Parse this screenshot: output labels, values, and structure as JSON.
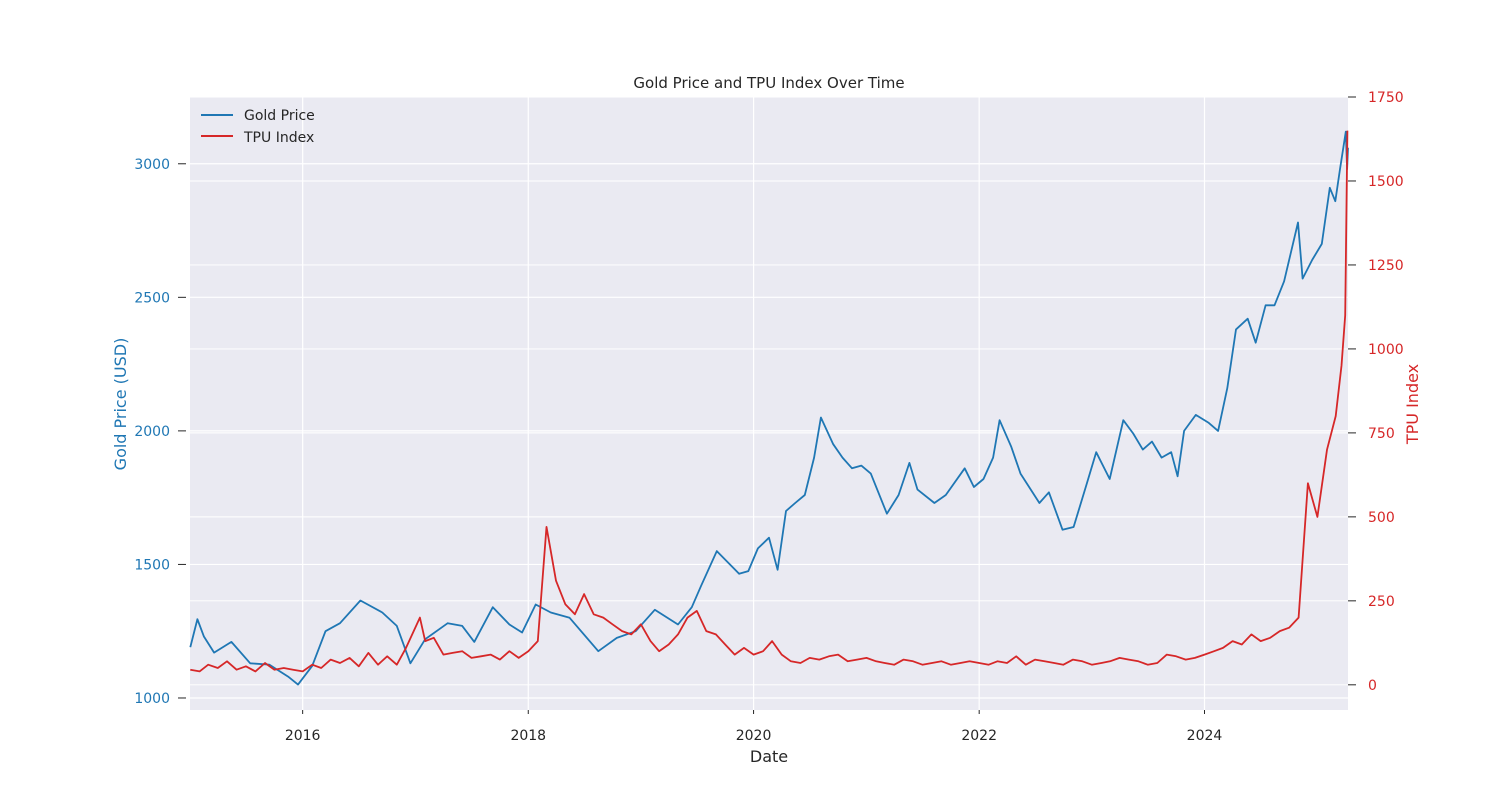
{
  "chart_data": {
    "type": "line",
    "title": "Gold Price and TPU Index Over Time",
    "xlabel": "Date",
    "ylabel_left": "Gold Price (USD)",
    "ylabel_right": "TPU Index",
    "x_range": [
      "2015-01-01",
      "2025-04-10"
    ],
    "x_ticks": [
      "2016",
      "2018",
      "2020",
      "2022",
      "2024"
    ],
    "ylim_left": [
      955,
      3250
    ],
    "yticks_left": [
      1000,
      1500,
      2000,
      2500,
      3000
    ],
    "ylim_right": [
      -75,
      1750
    ],
    "yticks_right": [
      0,
      250,
      500,
      750,
      1000,
      1250,
      1500,
      1750
    ],
    "grid": true,
    "legend_position": "top-left",
    "colors": {
      "gold": "#1f77b4",
      "tpu": "#d62728",
      "plot_bg": "#eaeaf2",
      "grid": "#ffffff",
      "text": "#262626"
    },
    "series": [
      {
        "name": "Gold Price",
        "axis": "left",
        "color": "#1f77b4",
        "x": [
          "2015-01-02",
          "2015-01-25",
          "2015-02-15",
          "2015-03-20",
          "2015-05-15",
          "2015-07-15",
          "2015-09-15",
          "2015-11-15",
          "2015-12-17",
          "2016-02-01",
          "2016-03-15",
          "2016-05-01",
          "2016-07-06",
          "2016-09-15",
          "2016-11-01",
          "2016-12-15",
          "2017-02-01",
          "2017-04-15",
          "2017-06-01",
          "2017-07-10",
          "2017-09-08",
          "2017-11-01",
          "2017-12-12",
          "2018-01-25",
          "2018-03-15",
          "2018-05-15",
          "2018-08-16",
          "2018-10-15",
          "2018-12-15",
          "2019-02-15",
          "2019-05-01",
          "2019-06-15",
          "2019-07-15",
          "2019-09-04",
          "2019-11-15",
          "2019-12-15",
          "2020-01-15",
          "2020-02-20",
          "2020-03-19",
          "2020-04-15",
          "2020-05-15",
          "2020-06-15",
          "2020-07-15",
          "2020-08-06",
          "2020-09-15",
          "2020-10-15",
          "2020-11-15",
          "2020-12-15",
          "2021-01-15",
          "2021-03-08",
          "2021-04-15",
          "2021-05-20",
          "2021-06-15",
          "2021-08-09",
          "2021-09-15",
          "2021-11-15",
          "2021-12-15",
          "2022-01-15",
          "2022-02-15",
          "2022-03-08",
          "2022-04-15",
          "2022-05-15",
          "2022-07-15",
          "2022-08-15",
          "2022-09-28",
          "2022-11-03",
          "2022-12-15",
          "2023-01-15",
          "2023-02-28",
          "2023-04-13",
          "2023-05-15",
          "2023-06-15",
          "2023-07-15",
          "2023-08-15",
          "2023-09-15",
          "2023-10-06",
          "2023-10-27",
          "2023-12-04",
          "2024-01-15",
          "2024-02-14",
          "2024-03-15",
          "2024-04-12",
          "2024-05-20",
          "2024-06-15",
          "2024-07-17",
          "2024-08-15",
          "2024-09-15",
          "2024-10-30",
          "2024-11-14",
          "2024-12-15",
          "2025-01-15",
          "2025-02-10",
          "2025-02-28",
          "2025-03-15",
          "2025-04-03",
          "2025-04-07",
          "2025-04-10"
        ],
        "y": [
          1190,
          1295,
          1230,
          1170,
          1210,
          1130,
          1125,
          1080,
          1050,
          1120,
          1250,
          1280,
          1365,
          1320,
          1270,
          1130,
          1220,
          1280,
          1270,
          1210,
          1340,
          1275,
          1245,
          1350,
          1320,
          1300,
          1175,
          1225,
          1250,
          1330,
          1275,
          1340,
          1420,
          1550,
          1465,
          1475,
          1560,
          1600,
          1480,
          1700,
          1730,
          1760,
          1900,
          2050,
          1950,
          1900,
          1860,
          1870,
          1840,
          1690,
          1760,
          1880,
          1780,
          1730,
          1760,
          1860,
          1790,
          1820,
          1900,
          2040,
          1940,
          1840,
          1730,
          1770,
          1630,
          1640,
          1800,
          1920,
          1820,
          2040,
          1990,
          1930,
          1960,
          1900,
          1920,
          1830,
          2000,
          2060,
          2030,
          2000,
          2160,
          2380,
          2420,
          2330,
          2470,
          2470,
          2560,
          2780,
          2570,
          2640,
          2700,
          2910,
          2860,
          2980,
          3120,
          2980,
          3060
        ]
      },
      {
        "name": "TPU Index",
        "axis": "right",
        "color": "#d62728",
        "x": [
          "2015-01-02",
          "2015-02-01",
          "2015-03-01",
          "2015-04-01",
          "2015-05-01",
          "2015-06-01",
          "2015-07-01",
          "2015-08-01",
          "2015-09-01",
          "2015-10-01",
          "2015-11-01",
          "2015-12-01",
          "2016-01-01",
          "2016-02-01",
          "2016-03-01",
          "2016-04-01",
          "2016-05-01",
          "2016-06-01",
          "2016-07-01",
          "2016-08-01",
          "2016-09-01",
          "2016-10-01",
          "2016-11-01",
          "2016-12-01",
          "2017-01-15",
          "2017-02-01",
          "2017-03-01",
          "2017-04-01",
          "2017-05-01",
          "2017-06-01",
          "2017-07-01",
          "2017-08-01",
          "2017-09-01",
          "2017-10-01",
          "2017-11-01",
          "2017-12-01",
          "2018-01-01",
          "2018-02-01",
          "2018-03-01",
          "2018-04-01",
          "2018-05-01",
          "2018-06-01",
          "2018-07-01",
          "2018-08-01",
          "2018-09-01",
          "2018-10-01",
          "2018-11-01",
          "2018-12-01",
          "2019-01-01",
          "2019-02-01",
          "2019-03-01",
          "2019-04-01",
          "2019-05-01",
          "2019-06-01",
          "2019-07-01",
          "2019-08-01",
          "2019-09-01",
          "2019-10-01",
          "2019-11-01",
          "2019-12-01",
          "2020-01-01",
          "2020-02-01",
          "2020-03-01",
          "2020-04-01",
          "2020-05-01",
          "2020-06-01",
          "2020-07-01",
          "2020-08-01",
          "2020-09-01",
          "2020-10-01",
          "2020-11-01",
          "2020-12-01",
          "2021-01-01",
          "2021-02-01",
          "2021-03-01",
          "2021-04-01",
          "2021-05-01",
          "2021-06-01",
          "2021-07-01",
          "2021-08-01",
          "2021-09-01",
          "2021-10-01",
          "2021-11-01",
          "2021-12-01",
          "2022-01-01",
          "2022-02-01",
          "2022-03-01",
          "2022-04-01",
          "2022-05-01",
          "2022-06-01",
          "2022-07-01",
          "2022-08-01",
          "2022-09-01",
          "2022-10-01",
          "2022-11-01",
          "2022-12-01",
          "2023-01-01",
          "2023-02-01",
          "2023-03-01",
          "2023-04-01",
          "2023-05-01",
          "2023-06-01",
          "2023-07-01",
          "2023-08-01",
          "2023-09-01",
          "2023-10-01",
          "2023-11-01",
          "2023-12-01",
          "2024-01-01",
          "2024-02-01",
          "2024-03-01",
          "2024-04-01",
          "2024-05-01",
          "2024-06-01",
          "2024-07-01",
          "2024-08-01",
          "2024-09-01",
          "2024-10-01",
          "2024-11-01",
          "2024-12-01",
          "2025-01-01",
          "2025-02-01",
          "2025-03-01",
          "2025-03-20",
          "2025-04-01",
          "2025-04-08"
        ],
        "y": [
          45,
          40,
          60,
          50,
          70,
          45,
          55,
          40,
          65,
          45,
          50,
          45,
          40,
          60,
          50,
          75,
          65,
          80,
          55,
          95,
          60,
          85,
          60,
          110,
          200,
          130,
          140,
          90,
          95,
          100,
          80,
          85,
          90,
          75,
          100,
          80,
          100,
          130,
          470,
          310,
          240,
          210,
          270,
          210,
          200,
          180,
          160,
          150,
          180,
          130,
          100,
          120,
          150,
          200,
          220,
          160,
          150,
          120,
          90,
          110,
          90,
          100,
          130,
          90,
          70,
          65,
          80,
          75,
          85,
          90,
          70,
          75,
          80,
          70,
          65,
          60,
          75,
          70,
          60,
          65,
          70,
          60,
          65,
          70,
          65,
          60,
          70,
          65,
          85,
          60,
          75,
          70,
          65,
          60,
          75,
          70,
          60,
          65,
          70,
          80,
          75,
          70,
          60,
          65,
          90,
          85,
          75,
          80,
          90,
          100,
          110,
          130,
          120,
          150,
          130,
          140,
          160,
          170,
          200,
          600,
          500,
          700,
          800,
          950,
          1100,
          1650
        ]
      }
    ]
  }
}
